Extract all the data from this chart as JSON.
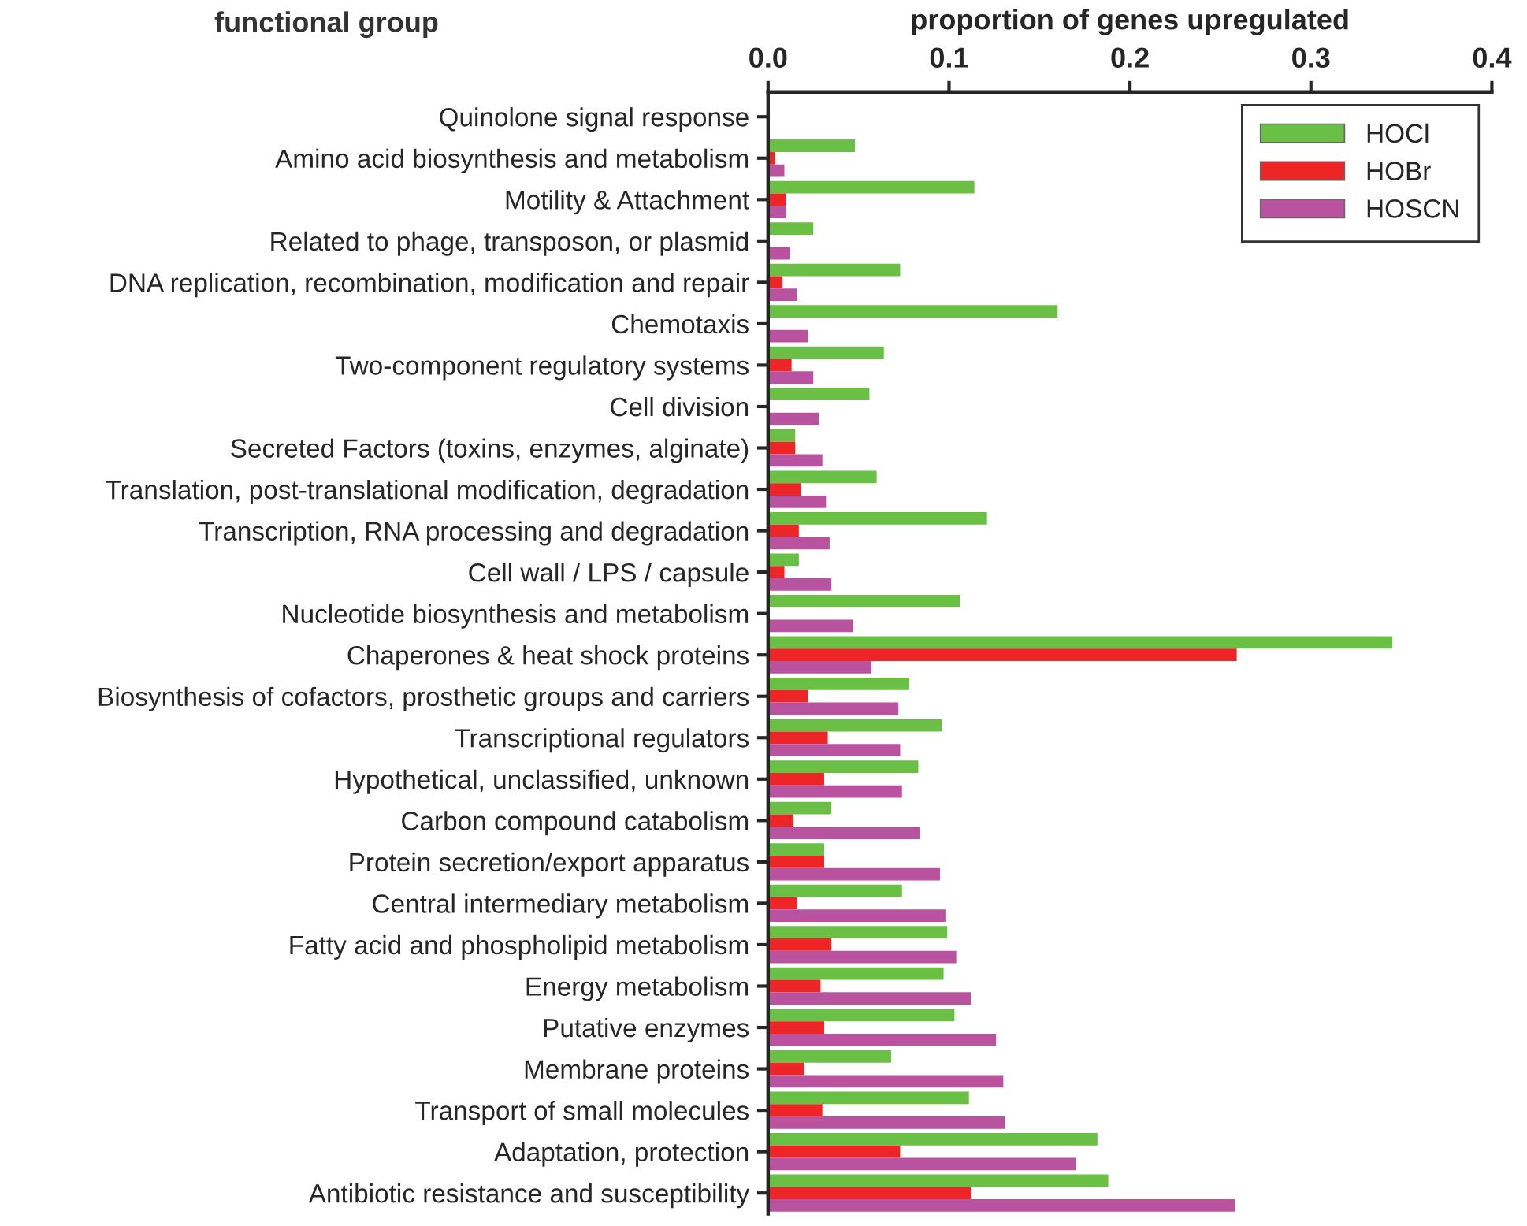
{
  "chart_data": {
    "type": "bar",
    "orientation": "horizontal",
    "xlabel": "proportion of genes upregulated",
    "ylabel": "functional group",
    "categories": [
      "Quinolone signal response",
      "Amino acid biosynthesis and metabolism",
      "Motility & Attachment",
      "Related to phage, transposon, or plasmid",
      "DNA replication, recombination, modification and repair",
      "Chemotaxis",
      "Two-component regulatory systems",
      "Cell division",
      "Secreted Factors (toxins, enzymes, alginate)",
      "Translation, post-translational modification, degradation",
      "Transcription, RNA processing and degradation",
      "Cell wall / LPS / capsule",
      "Nucleotide biosynthesis and metabolism",
      "Chaperones & heat shock proteins",
      "Biosynthesis of cofactors, prosthetic groups and carriers",
      "Transcriptional regulators",
      "Hypothetical, unclassified, unknown",
      "Carbon compound catabolism",
      "Protein secretion/export apparatus",
      "Central intermediary metabolism",
      "Fatty acid and phospholipid metabolism",
      "Energy metabolism",
      "Putative enzymes",
      "Membrane proteins",
      "Transport of small molecules",
      "Adaptation, protection",
      "Antibiotic resistance and susceptibility"
    ],
    "series": [
      {
        "name": "HOCl",
        "color": "#6abf45",
        "values": [
          0,
          0.048,
          0.114,
          0.025,
          0.073,
          0.16,
          0.064,
          0.056,
          0.015,
          0.06,
          0.121,
          0.017,
          0.106,
          0.345,
          0.078,
          0.096,
          0.083,
          0.035,
          0.031,
          0.074,
          0.099,
          0.097,
          0.103,
          0.068,
          0.111,
          0.182,
          0.188
        ]
      },
      {
        "name": "HOBr",
        "color": "#ee2527",
        "values": [
          0,
          0.004,
          0.01,
          0,
          0.008,
          0,
          0.013,
          0,
          0.015,
          0.018,
          0.017,
          0.009,
          0,
          0.259,
          0.022,
          0.033,
          0.031,
          0.014,
          0.031,
          0.016,
          0.035,
          0.029,
          0.031,
          0.02,
          0.03,
          0.073,
          0.112
        ]
      },
      {
        "name": "HOSCN",
        "color": "#b9529f",
        "values": [
          0,
          0.009,
          0.01,
          0.012,
          0.016,
          0.022,
          0.025,
          0.028,
          0.03,
          0.032,
          0.034,
          0.035,
          0.047,
          0.057,
          0.072,
          0.073,
          0.074,
          0.084,
          0.095,
          0.098,
          0.104,
          0.112,
          0.126,
          0.13,
          0.131,
          0.17,
          0.258
        ]
      }
    ],
    "xlim": [
      0,
      0.4
    ],
    "xticks": [
      {
        "value": 0,
        "label": "0.0"
      },
      0.1,
      0.2,
      0.3,
      0.4
    ],
    "legend": "top right",
    "grid": false
  }
}
